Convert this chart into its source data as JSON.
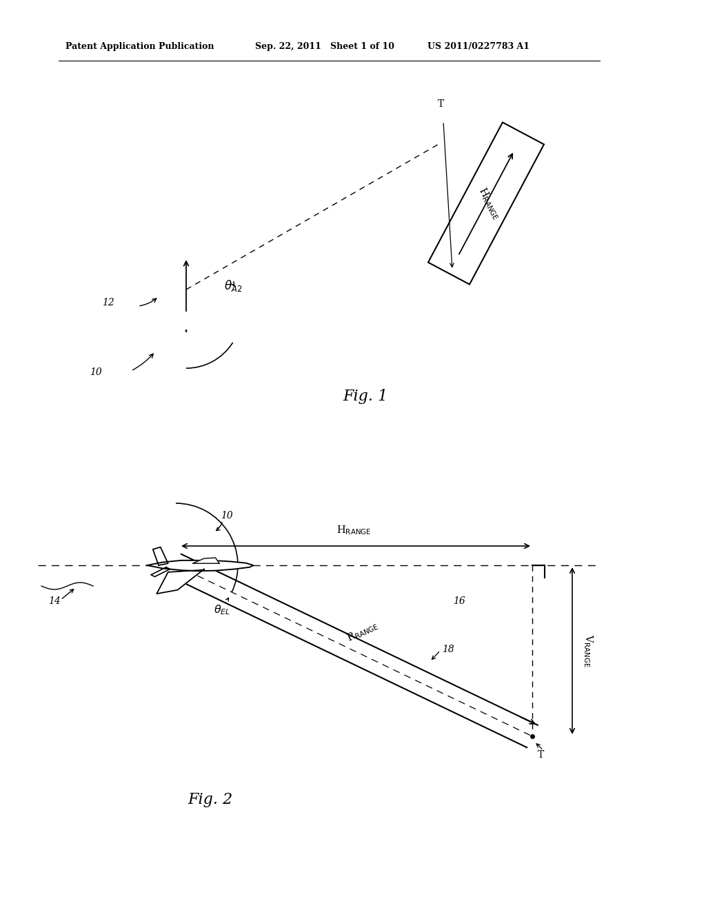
{
  "bg_color": "#ffffff",
  "header_left": "Patent Application Publication",
  "header_mid": "Sep. 22, 2011   Sheet 1 of 10",
  "header_right": "US 2011/0227783 A1",
  "fig1_label": "Fig. 1",
  "fig2_label": "Fig. 2"
}
